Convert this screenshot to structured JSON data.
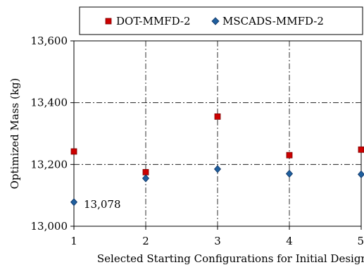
{
  "chart_data": {
    "type": "scatter",
    "title": "",
    "xlabel": "Selected Starting Configurations for Initial Design",
    "ylabel": "Optimized Mass (kg)",
    "xlim": [
      1,
      5
    ],
    "ylim": [
      13000,
      13600
    ],
    "x_ticks": [
      "1",
      "2",
      "3",
      "4",
      "5"
    ],
    "y_ticks": [
      "13,000",
      "13,200",
      "13,400",
      "13,600"
    ],
    "grid": "dash-dot, both axes",
    "legend_position": "top-center",
    "series": [
      {
        "name": "DOT-MMFD-2",
        "marker": "square",
        "color": "#cc0000",
        "x": [
          1,
          2,
          3,
          4,
          5
        ],
        "values": [
          13242,
          13175,
          13355,
          13230,
          13248
        ]
      },
      {
        "name": "MSCADS-MMFD-2",
        "marker": "diamond",
        "color": "#1f5f9e",
        "x": [
          1,
          2,
          3,
          4,
          5
        ],
        "values": [
          13078,
          13155,
          13185,
          13170,
          13168
        ]
      }
    ],
    "annotations": [
      {
        "text": "13,078"
      }
    ]
  }
}
